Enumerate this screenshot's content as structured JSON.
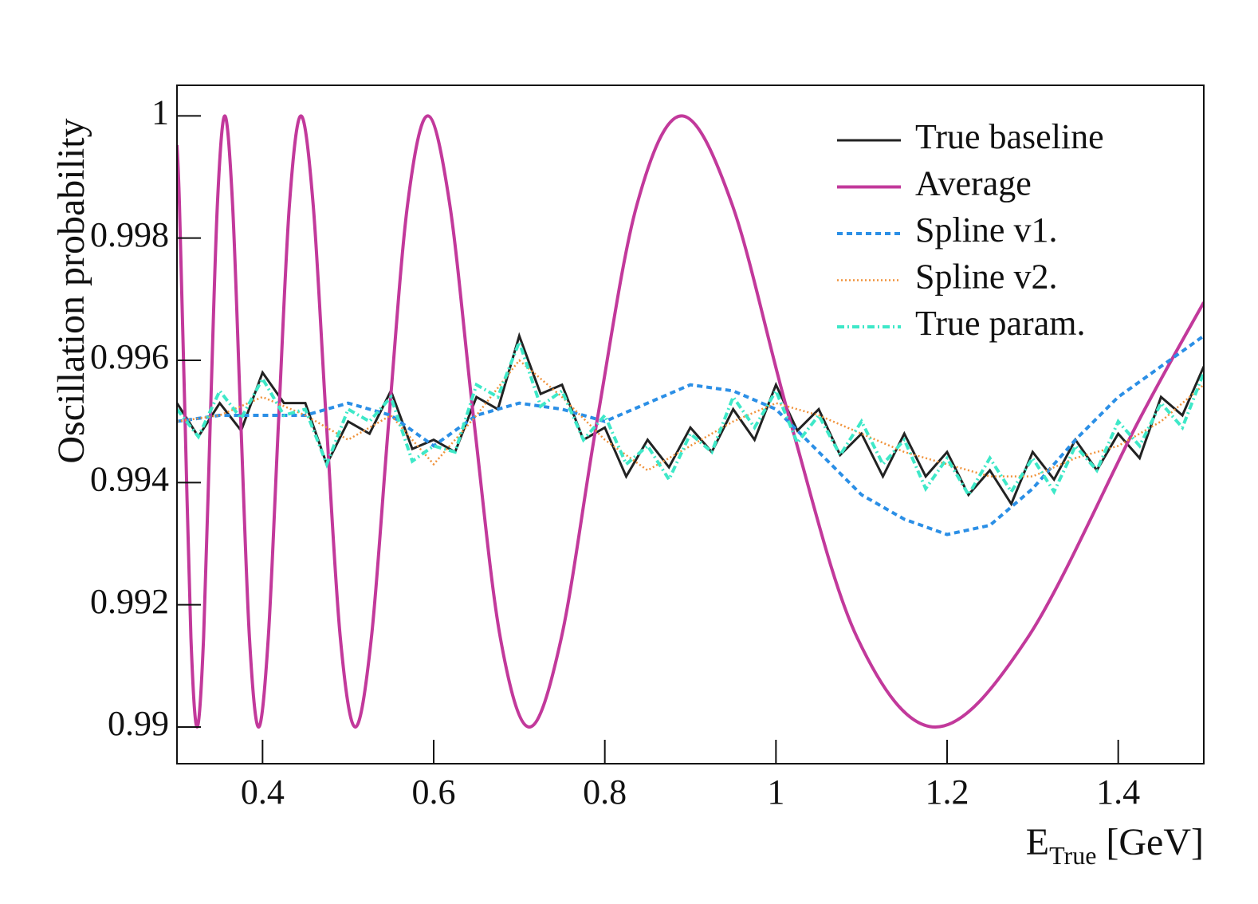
{
  "chart_data": {
    "type": "line",
    "ylabel": "Oscillation probability",
    "xlabel": {
      "base": "E",
      "subscript": "True",
      "unit": "[GeV]"
    },
    "xlim": [
      0.3,
      1.5
    ],
    "ylim": [
      0.9894,
      1.0005
    ],
    "xticks": [
      0.4,
      0.6,
      0.8,
      1,
      1.2,
      1.4
    ],
    "yticks": [
      0.99,
      0.992,
      0.994,
      0.996,
      0.998,
      1
    ],
    "legend": "upper right",
    "series": [
      {
        "name": "True baseline",
        "color": "#222222",
        "style": "solid",
        "x": [
          0.3,
          0.325,
          0.35,
          0.375,
          0.4,
          0.425,
          0.45,
          0.475,
          0.5,
          0.525,
          0.55,
          0.575,
          0.6,
          0.625,
          0.65,
          0.675,
          0.7,
          0.725,
          0.75,
          0.775,
          0.8,
          0.825,
          0.85,
          0.875,
          0.9,
          0.925,
          0.95,
          0.975,
          1.0,
          1.025,
          1.05,
          1.075,
          1.1,
          1.125,
          1.15,
          1.175,
          1.2,
          1.225,
          1.25,
          1.275,
          1.3,
          1.325,
          1.35,
          1.375,
          1.4,
          1.425,
          1.45,
          1.475,
          1.5
        ],
        "values": [
          0.9953,
          0.99475,
          0.9953,
          0.99485,
          0.9958,
          0.9953,
          0.9953,
          0.9943,
          0.995,
          0.9948,
          0.9955,
          0.99455,
          0.9947,
          0.9945,
          0.9954,
          0.9952,
          0.9964,
          0.99545,
          0.9956,
          0.9947,
          0.9949,
          0.9941,
          0.9947,
          0.99425,
          0.9949,
          0.9945,
          0.9952,
          0.9947,
          0.9956,
          0.99485,
          0.9952,
          0.99445,
          0.9948,
          0.9941,
          0.9948,
          0.9941,
          0.9945,
          0.9938,
          0.9942,
          0.99365,
          0.9945,
          0.99405,
          0.9947,
          0.9942,
          0.9948,
          0.9944,
          0.9954,
          0.9951,
          0.9959
        ]
      },
      {
        "name": "Average",
        "color": "#c2399b",
        "style": "solid",
        "x": [
          0.3,
          0.3029,
          0.3095,
          0.3163,
          0.3235,
          0.3311,
          0.3389,
          0.3472,
          0.3559,
          0.365,
          0.3746,
          0.3847,
          0.3954,
          0.4067,
          0.4187,
          0.4314,
          0.4449,
          0.4592,
          0.4745,
          0.4909,
          0.5084,
          0.5272,
          0.5475,
          0.5694,
          0.5931,
          0.6189,
          0.6471,
          0.6779,
          0.7118,
          0.7492,
          0.7908,
          0.8374,
          0.8897,
          0.949,
          1.0168,
          1.095,
          1.1863,
          1.2941,
          1.4235,
          1.5
        ],
        "values": [
          0.99952,
          0.99854,
          0.995,
          0.99146,
          0.99,
          0.99146,
          0.995,
          0.99854,
          1,
          0.99854,
          0.995,
          0.99146,
          0.99,
          0.99146,
          0.995,
          0.99854,
          1,
          0.99854,
          0.995,
          0.99146,
          0.99,
          0.99146,
          0.995,
          0.99854,
          1,
          0.99854,
          0.995,
          0.99146,
          0.99,
          0.99146,
          0.995,
          0.99854,
          1,
          0.99854,
          0.995,
          0.99146,
          0.99,
          0.99146,
          0.995,
          0.99695
        ]
      },
      {
        "name": "Spline v1.",
        "color": "#2b8fe6",
        "style": "dashed",
        "x": [
          0.3,
          0.35,
          0.4,
          0.45,
          0.5,
          0.55,
          0.6,
          0.65,
          0.7,
          0.75,
          0.8,
          0.85,
          0.9,
          0.95,
          1.0,
          1.05,
          1.1,
          1.15,
          1.2,
          1.25,
          1.3,
          1.35,
          1.4,
          1.45,
          1.5
        ],
        "values": [
          0.995,
          0.9951,
          0.9951,
          0.9951,
          0.9953,
          0.9951,
          0.9946,
          0.9951,
          0.9953,
          0.9952,
          0.995,
          0.9953,
          0.9956,
          0.9955,
          0.9952,
          0.9945,
          0.9938,
          0.9934,
          0.99315,
          0.9933,
          0.9939,
          0.9947,
          0.9954,
          0.9959,
          0.9964
        ]
      },
      {
        "name": "Spline v2.",
        "color": "#f0923a",
        "style": "dotted",
        "x": [
          0.3,
          0.35,
          0.4,
          0.45,
          0.5,
          0.55,
          0.6,
          0.65,
          0.7,
          0.75,
          0.8,
          0.85,
          0.9,
          0.95,
          1.0,
          1.05,
          1.1,
          1.15,
          1.2,
          1.25,
          1.3,
          1.35,
          1.4,
          1.45,
          1.5
        ],
        "values": [
          0.995,
          0.9951,
          0.9954,
          0.9951,
          0.9947,
          0.9951,
          0.9943,
          0.9951,
          0.996,
          0.9954,
          0.9947,
          0.9942,
          0.9946,
          0.995,
          0.9953,
          0.9951,
          0.9948,
          0.9945,
          0.9943,
          0.9941,
          0.9941,
          0.9944,
          0.9946,
          0.995,
          0.9956
        ]
      },
      {
        "name": "True param.",
        "color": "#3ee8c8",
        "style": "dashdot",
        "x": [
          0.3,
          0.325,
          0.35,
          0.375,
          0.4,
          0.425,
          0.45,
          0.475,
          0.5,
          0.525,
          0.55,
          0.575,
          0.6,
          0.625,
          0.65,
          0.675,
          0.7,
          0.725,
          0.75,
          0.775,
          0.8,
          0.825,
          0.85,
          0.875,
          0.9,
          0.925,
          0.95,
          0.975,
          1.0,
          1.025,
          1.05,
          1.075,
          1.1,
          1.125,
          1.15,
          1.175,
          1.2,
          1.225,
          1.25,
          1.275,
          1.3,
          1.325,
          1.35,
          1.375,
          1.4,
          1.425,
          1.45,
          1.475,
          1.5
        ],
        "values": [
          0.9952,
          0.99475,
          0.9955,
          0.99505,
          0.9957,
          0.9951,
          0.9952,
          0.9943,
          0.9952,
          0.995,
          0.9954,
          0.99435,
          0.9946,
          0.9945,
          0.9956,
          0.9954,
          0.9963,
          0.99525,
          0.9955,
          0.9947,
          0.9951,
          0.9943,
          0.9946,
          0.99405,
          0.9948,
          0.9945,
          0.9954,
          0.9949,
          0.9955,
          0.99465,
          0.9951,
          0.99445,
          0.995,
          0.9943,
          0.9947,
          0.9939,
          0.9944,
          0.9938,
          0.9944,
          0.99385,
          0.9944,
          0.99385,
          0.9946,
          0.9942,
          0.995,
          0.9946,
          0.9953,
          0.9949,
          0.9958
        ]
      }
    ]
  }
}
